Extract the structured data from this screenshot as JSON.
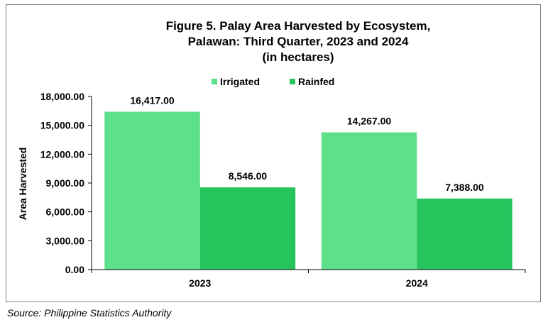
{
  "source": "Source: Philippine Statistics Authority",
  "chart_data": {
    "type": "bar",
    "title_lines": [
      "Figure 5. Palay Area Harvested by Ecosystem,",
      "Palawan: Third Quarter, 2023 and 2024",
      "(in hectares)"
    ],
    "xlabel": "",
    "ylabel": "Area Harvested",
    "categories": [
      "2023",
      "2024"
    ],
    "series": [
      {
        "name": "Irrigated",
        "color": "#5ce08a",
        "values": [
          16417,
          14267
        ],
        "labels": [
          "16,417.00",
          "14,267.00"
        ]
      },
      {
        "name": "Rainfed",
        "color": "#27c45e",
        "values": [
          8546,
          7388
        ],
        "labels": [
          "8,546.00",
          "7,388.00"
        ]
      }
    ],
    "ylim": [
      0,
      18000
    ],
    "yticks": [
      0,
      3000,
      6000,
      9000,
      12000,
      15000,
      18000
    ],
    "ytick_labels": [
      "0.00",
      "3,000.00",
      "6,000.00",
      "9,000.00",
      "12,000.00",
      "15,000.00",
      "18,000.00"
    ],
    "grid": false,
    "legend_position": "top"
  }
}
